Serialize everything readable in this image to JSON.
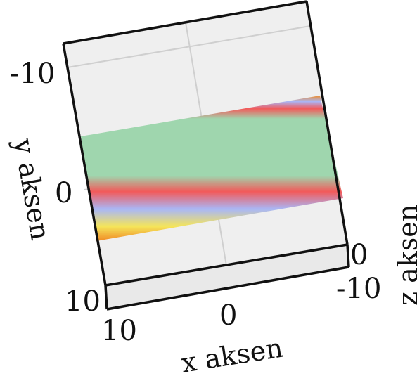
{
  "chart_data": {
    "type": "surface",
    "view": "3d-top-down-tilted",
    "xlabel": "x aksen",
    "ylabel": "y aksen",
    "zlabel": "z aksen",
    "xlim": [
      -10,
      10
    ],
    "ylim": [
      -10,
      10
    ],
    "zlim": [
      -10,
      0
    ],
    "x_ticks": [
      "10",
      "0",
      "-10"
    ],
    "y_ticks": [
      "-10",
      "0",
      "10"
    ],
    "z_ticks": [
      "0",
      "-10"
    ],
    "grid": true,
    "pane_color": "#efefef",
    "band": {
      "y_from": -6,
      "y_to": 5,
      "colors": [
        "#f08a24",
        "#f5e55a",
        "#a9b7f7",
        "#f25a5a",
        "#9fd6ae",
        "#9fd6ae",
        "#f25a5a",
        "#a9b7f7",
        "#f08a24"
      ]
    }
  }
}
